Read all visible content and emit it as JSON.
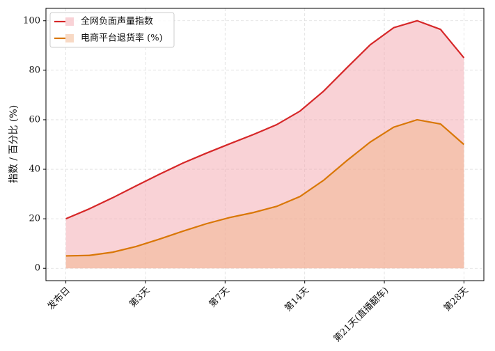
{
  "chart_data": {
    "type": "area",
    "ylabel": "指数 / 百分比 (%)",
    "x": [
      0,
      1,
      2,
      3,
      4,
      5,
      6,
      7,
      8,
      9,
      10,
      11,
      12,
      13,
      14,
      15,
      16,
      17
    ],
    "xlim": [
      -0.85,
      17.85
    ],
    "xticks": [
      {
        "value": 0,
        "label": "发布日"
      },
      {
        "value": 3.4,
        "label": "第3天"
      },
      {
        "value": 6.8,
        "label": "第7天"
      },
      {
        "value": 10.2,
        "label": "第14天"
      },
      {
        "value": 13.6,
        "label": "第21天(直播翻车)"
      },
      {
        "value": 17,
        "label": "第28天"
      }
    ],
    "ylim": [
      -5,
      105
    ],
    "yticks": [
      0,
      20,
      40,
      60,
      80,
      100
    ],
    "grid": true,
    "legend": "upper left",
    "series": [
      {
        "name": "全网负面声量指数",
        "color": "#d62728",
        "fill": "#f4a6ad",
        "values": [
          20,
          24,
          28.5,
          33.3,
          38,
          42.5,
          46.5,
          50.3,
          54,
          58,
          63.5,
          71.5,
          81,
          90.3,
          97.2,
          100,
          96.5,
          85
        ]
      },
      {
        "name": "电商平台退货率 (%)",
        "color": "#d97706",
        "fill": "#f2b48a",
        "values": [
          5,
          5.2,
          6.5,
          8.8,
          11.8,
          15,
          18,
          20.5,
          22.5,
          25,
          29,
          35.5,
          43.5,
          51,
          57,
          60,
          58.3,
          50
        ]
      }
    ]
  }
}
